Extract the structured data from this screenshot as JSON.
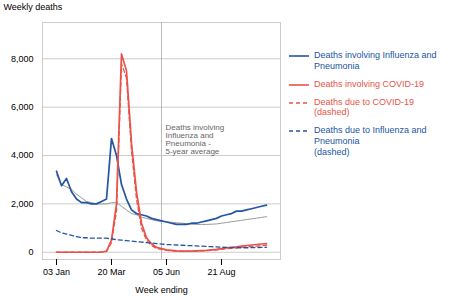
{
  "chart_data": {
    "type": "line",
    "ylabel": "Weekly deaths",
    "xlabel": "Week ending",
    "categories": [
      "03 Jan",
      null,
      null,
      null,
      null,
      null,
      null,
      null,
      null,
      null,
      null,
      "20 Mar",
      null,
      null,
      null,
      null,
      null,
      null,
      null,
      null,
      null,
      null,
      "05 Jun",
      null,
      null,
      null,
      null,
      null,
      null,
      null,
      null,
      null,
      null,
      "21 Aug",
      null,
      null,
      null,
      null,
      null,
      null,
      null,
      null,
      null
    ],
    "ylim": [
      -300,
      9500
    ],
    "yticks": [
      0,
      {
        "value": 2000,
        "label": "2,000"
      },
      {
        "value": 4000,
        "label": "4,000"
      },
      {
        "value": 6000,
        "label": "6,000"
      },
      {
        "value": 8000,
        "label": "8,000"
      }
    ],
    "grid": true,
    "legend": "right",
    "vline": 21,
    "annotations": [
      {
        "text": "Deaths involving\nInfluenza and\nPneumonia -\n5-year average",
        "x": 21,
        "y": 5300
      }
    ],
    "series": [
      {
        "color": "#999999",
        "line_style": "solid",
        "values": [
          3200,
          2800,
          2700,
          2600,
          2400,
          2250,
          2100,
          2050,
          2000,
          2000,
          2000,
          2050,
          2050,
          1900,
          1750,
          1600,
          1550,
          1450,
          1400,
          1350,
          1300,
          1280,
          1260,
          1240,
          1220,
          1200,
          1180,
          1160,
          1150,
          1150,
          1150,
          1160,
          1170,
          1200,
          1230,
          1260,
          1290,
          1320,
          1350,
          1380,
          1410,
          1440,
          1470
        ]
      },
      {
        "name": "Deaths involving Influenza and Pneumonia",
        "color": "#2255A4",
        "line_style": "solid",
        "values": [
          3350,
          2750,
          3050,
          2500,
          2200,
          2050,
          2050,
          2000,
          2000,
          2100,
          2200,
          4700,
          4000,
          2800,
          2200,
          1750,
          1600,
          1550,
          1500,
          1400,
          1350,
          1300,
          1250,
          1200,
          1150,
          1150,
          1150,
          1200,
          1200,
          1250,
          1300,
          1350,
          1400,
          1500,
          1550,
          1600,
          1700,
          1700,
          1750,
          1800,
          1850,
          1900,
          1950
        ]
      },
      {
        "name": "Deaths involving COVID-19",
        "color": "#E8534A",
        "line_style": "solid",
        "values": [
          0,
          0,
          0,
          0,
          0,
          0,
          0,
          0,
          0,
          0,
          50,
          500,
          2000,
          8200,
          7500,
          4500,
          2500,
          1200,
          600,
          350,
          200,
          150,
          100,
          80,
          60,
          50,
          50,
          50,
          60,
          70,
          80,
          100,
          120,
          150,
          180,
          200,
          220,
          250,
          280,
          300,
          320,
          340,
          360
        ]
      },
      {
        "name": "Deaths due to COVID-19 (dashed)",
        "color": "#E8534A",
        "line_style": "dashed",
        "values": [
          0,
          0,
          0,
          0,
          0,
          0,
          0,
          0,
          0,
          0,
          30,
          400,
          1700,
          7800,
          7200,
          4200,
          2200,
          1000,
          500,
          280,
          160,
          120,
          80,
          60,
          50,
          40,
          40,
          40,
          50,
          55,
          65,
          80,
          95,
          120,
          145,
          160,
          175,
          200,
          225,
          240,
          255,
          270,
          290
        ]
      },
      {
        "name": "Deaths due to Influenza and Pneumonia\n(dashed)",
        "color": "#2255A4",
        "line_style": "dashed",
        "values": [
          900,
          800,
          750,
          700,
          650,
          600,
          600,
          580,
          580,
          580,
          580,
          550,
          520,
          500,
          480,
          460,
          440,
          420,
          400,
          380,
          360,
          340,
          320,
          310,
          300,
          290,
          280,
          270,
          260,
          250,
          240,
          230,
          220,
          210,
          200,
          195,
          190,
          185,
          185,
          190,
          195,
          200,
          205
        ]
      }
    ]
  }
}
